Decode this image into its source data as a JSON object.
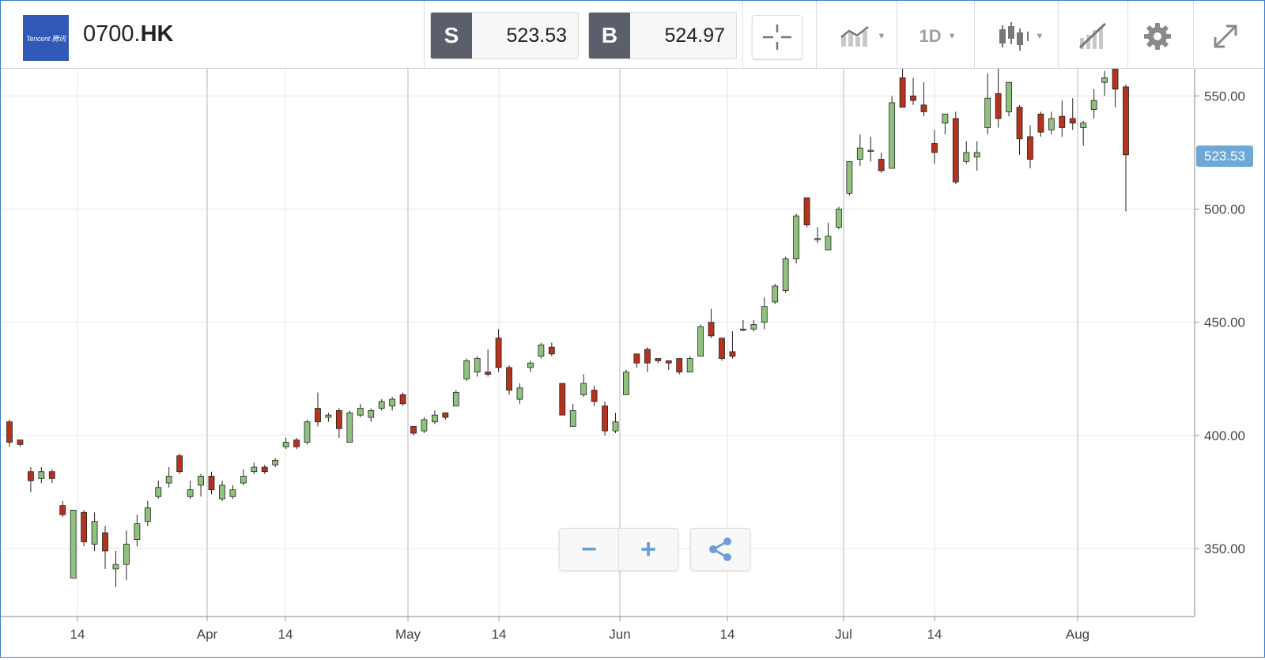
{
  "header": {
    "logo_text": "Tencent 腾讯",
    "symbol_prefix": "0700.",
    "symbol_suffix": "HK",
    "sell_label": "S",
    "sell_price": "523.53",
    "buy_label": "B",
    "buy_price": "524.97",
    "interval_label": "1D",
    "icons": [
      "crosshair-icon",
      "line-chart-icon",
      "candlestick-icon",
      "draw-tool-icon",
      "gear-icon",
      "expand-icon"
    ]
  },
  "controls": {
    "zoom_out": "−",
    "zoom_in": "+",
    "share_icon": "share-icon"
  },
  "colors": {
    "up": "#8fc27d",
    "down": "#b5321e",
    "accent": "#6fa8d6",
    "grid": "#e6e6e6"
  },
  "chart_data": {
    "type": "candlestick",
    "ylim": [
      320,
      562
    ],
    "y_ticks": [
      "550.00",
      "500.00",
      "450.00",
      "400.00",
      "350.00"
    ],
    "y_tick_values": [
      550,
      500,
      450,
      400,
      350
    ],
    "current_price_label": "523.53",
    "current_price": 523.53,
    "x_tick_labels": [
      "14",
      "Apr",
      "14",
      "May",
      "14",
      "Jun",
      "14",
      "Jul",
      "14",
      "Aug"
    ],
    "candles": [
      [
        406,
        397,
        395,
        407
      ],
      [
        398,
        396,
        395,
        398
      ],
      [
        384,
        380,
        375,
        386
      ],
      [
        381,
        384,
        379,
        386
      ],
      [
        384,
        381,
        379,
        385
      ],
      [
        369,
        365,
        364,
        371
      ],
      [
        337,
        367,
        337,
        367
      ],
      [
        366,
        353,
        351,
        367
      ],
      [
        352,
        362,
        349,
        366
      ],
      [
        357,
        349,
        341,
        360
      ],
      [
        341,
        343,
        333,
        349
      ],
      [
        343,
        352,
        336,
        358
      ],
      [
        354,
        361,
        351,
        365
      ],
      [
        362,
        368,
        360,
        371
      ],
      [
        373,
        377,
        372,
        380
      ],
      [
        379,
        382,
        377,
        386
      ],
      [
        391,
        384,
        383,
        392
      ],
      [
        373,
        376,
        372,
        380
      ],
      [
        378,
        382,
        373,
        383
      ],
      [
        382,
        376,
        374,
        384
      ],
      [
        372,
        378,
        371,
        380
      ],
      [
        373,
        376,
        372,
        378
      ],
      [
        379,
        382,
        378,
        385
      ],
      [
        384,
        386,
        383,
        388
      ],
      [
        386,
        384,
        383,
        387
      ],
      [
        387,
        389,
        386,
        390
      ],
      [
        395,
        397,
        394,
        399
      ],
      [
        398,
        395,
        394,
        399
      ],
      [
        397,
        406,
        396,
        407
      ],
      [
        412,
        406,
        404,
        419
      ],
      [
        408,
        409,
        406,
        410
      ],
      [
        411,
        403,
        399,
        412
      ],
      [
        397,
        410,
        397,
        411
      ],
      [
        409,
        412,
        408,
        414
      ],
      [
        408,
        411,
        406,
        412
      ],
      [
        412,
        415,
        411,
        416
      ],
      [
        413,
        416,
        411,
        417
      ],
      [
        418,
        414,
        413,
        419
      ],
      [
        404,
        401,
        400,
        404
      ],
      [
        402,
        407,
        401,
        408
      ],
      [
        406,
        409,
        405,
        411
      ],
      [
        410,
        408,
        407,
        410
      ],
      [
        413,
        419,
        413,
        420
      ],
      [
        425,
        433,
        424,
        434
      ],
      [
        428,
        434,
        426,
        435
      ],
      [
        428,
        427,
        426,
        438
      ],
      [
        443,
        430,
        428,
        447
      ],
      [
        430,
        420,
        418,
        431
      ],
      [
        416,
        421,
        414,
        423
      ],
      [
        430,
        432,
        428,
        433
      ],
      [
        435,
        440,
        434,
        441
      ],
      [
        439,
        436,
        435,
        441
      ],
      [
        423,
        409,
        409,
        423
      ],
      [
        404,
        411,
        405,
        414
      ],
      [
        418,
        423,
        417,
        427
      ],
      [
        420,
        415,
        413,
        422
      ],
      [
        413,
        402,
        400,
        415
      ],
      [
        402,
        406,
        401,
        410
      ],
      [
        418,
        428,
        418,
        429
      ],
      [
        436,
        432,
        430,
        436
      ],
      [
        438,
        432,
        428,
        439
      ],
      [
        434,
        433,
        432,
        434
      ],
      [
        433,
        432,
        429,
        433
      ],
      [
        434,
        428,
        427,
        434
      ],
      [
        428,
        434,
        428,
        435
      ],
      [
        435,
        448,
        435,
        449
      ],
      [
        450,
        444,
        443,
        456
      ],
      [
        443,
        434,
        433,
        443
      ],
      [
        437,
        435,
        434,
        446
      ],
      [
        447,
        447,
        446,
        451
      ],
      [
        447,
        449,
        446,
        451
      ],
      [
        450,
        457,
        447,
        461
      ],
      [
        459,
        466,
        458,
        467
      ],
      [
        464,
        478,
        463,
        479
      ],
      [
        478,
        497,
        476,
        498
      ],
      [
        505,
        493,
        492,
        505
      ],
      [
        487,
        487,
        485,
        492
      ],
      [
        482,
        488,
        482,
        494
      ],
      [
        492,
        500,
        491,
        501
      ],
      [
        507,
        521,
        506,
        521
      ],
      [
        522,
        527,
        519,
        533
      ],
      [
        526,
        526,
        521,
        532
      ],
      [
        522,
        517,
        516,
        525
      ],
      [
        518,
        547,
        518,
        550
      ],
      [
        558,
        545,
        545,
        564
      ],
      [
        550,
        548,
        546,
        558
      ],
      [
        546,
        543,
        541,
        556
      ],
      [
        529,
        525,
        520,
        535
      ],
      [
        538,
        542,
        533,
        542
      ],
      [
        540,
        512,
        511,
        543
      ],
      [
        521,
        525,
        520,
        530
      ],
      [
        523,
        525,
        517,
        530
      ],
      [
        536,
        549,
        533,
        560
      ],
      [
        551,
        540,
        536,
        563
      ],
      [
        543,
        556,
        541,
        556
      ],
      [
        545,
        531,
        524,
        546
      ],
      [
        532,
        522,
        518,
        537
      ],
      [
        542,
        534,
        532,
        543
      ],
      [
        535,
        540,
        533,
        543
      ],
      [
        541,
        536,
        532,
        548
      ],
      [
        540,
        538,
        535,
        549
      ],
      [
        536,
        538,
        528,
        539
      ],
      [
        544,
        548,
        540,
        553
      ],
      [
        556,
        558,
        550,
        561
      ],
      [
        562,
        553,
        545,
        564
      ],
      [
        554,
        524,
        499,
        555
      ]
    ]
  }
}
